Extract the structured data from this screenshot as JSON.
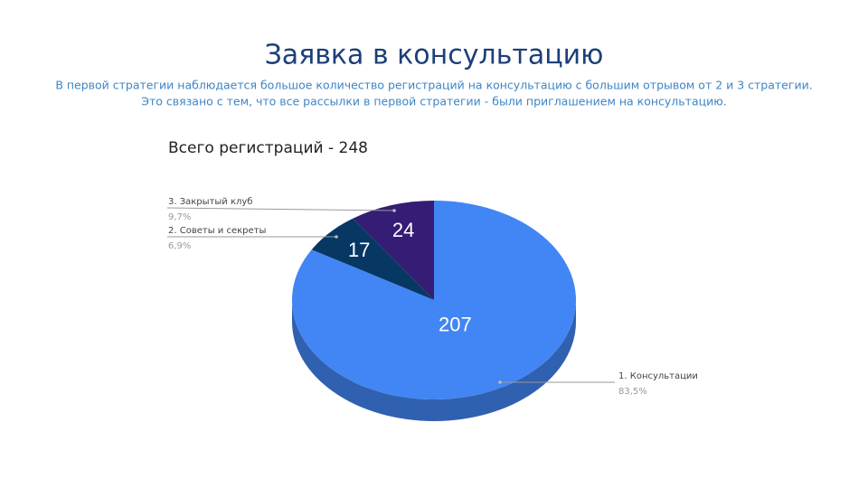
{
  "slide": {
    "title": "Заявка в консультацию",
    "text": [
      "В первой стратегии наблюдается большое количество регистраций на консультацию с большим отрывом от 2 и 3 стратегии.",
      "Это связано с тем, что все рассылки в первой стратегии - были приглашением на консультацию."
    ]
  },
  "chart_data": {
    "type": "pie",
    "title": "Всего регистраций - 248",
    "categories": [
      "1. Консультации",
      "2. Советы и секреты",
      "3. Закрытый клуб"
    ],
    "values": [
      207,
      17,
      24
    ],
    "percents": [
      83.5,
      6.9,
      9.7
    ],
    "percent_labels": [
      "83,5%",
      "6,9%",
      "9,7%"
    ],
    "colors": [
      "#4285f4",
      "#073763",
      "#351c75"
    ]
  }
}
